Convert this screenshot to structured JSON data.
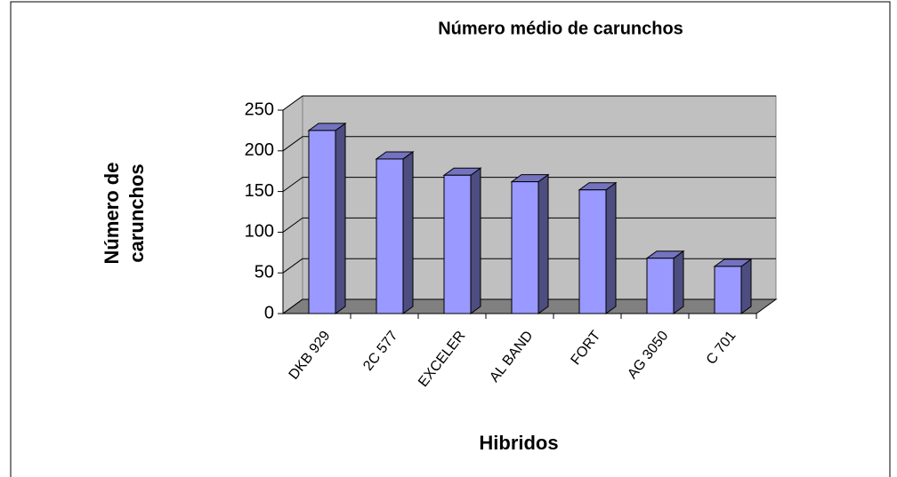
{
  "chart_data": {
    "type": "bar",
    "title": "Número médio de carunchos",
    "xlabel": "Hibridos",
    "ylabel": "Número de carunchos",
    "categories": [
      "DKB 929",
      "2C 577",
      "EXCELER",
      "AL BAND",
      "FORT",
      "AG 3050",
      "C 701"
    ],
    "values": [
      225,
      190,
      170,
      162,
      152,
      68,
      58
    ],
    "color": "#9999ff",
    "ylim": [
      0,
      250
    ],
    "yticks": [
      0,
      50,
      100,
      150,
      200,
      250
    ],
    "grid": true
  }
}
